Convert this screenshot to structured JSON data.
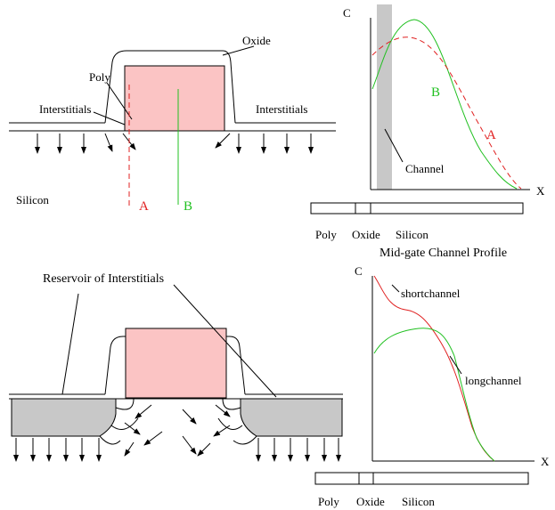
{
  "top_device": {
    "oxide": "Oxide",
    "poly": "Poly",
    "interstitials_left": "Interstitials",
    "interstitials_right": "Interstitials",
    "silicon": "Silicon",
    "cut_a": "A",
    "cut_b": "B"
  },
  "top_profile": {
    "y_axis": "C",
    "x_axis": "X",
    "curve_b": "B",
    "curve_a": "A",
    "channel": "Channel",
    "regions": [
      "Poly",
      "Oxide",
      "Silicon"
    ]
  },
  "bottom_profile": {
    "title": "Mid-gate Channel Profile",
    "y_axis": "C",
    "x_axis": "X",
    "curves": [
      "shortchannel",
      "longchannel"
    ],
    "regions": [
      "Poly",
      "Oxide",
      "Silicon"
    ]
  },
  "bottom_device": {
    "reservoir": "Reservoir of Interstitials"
  }
}
